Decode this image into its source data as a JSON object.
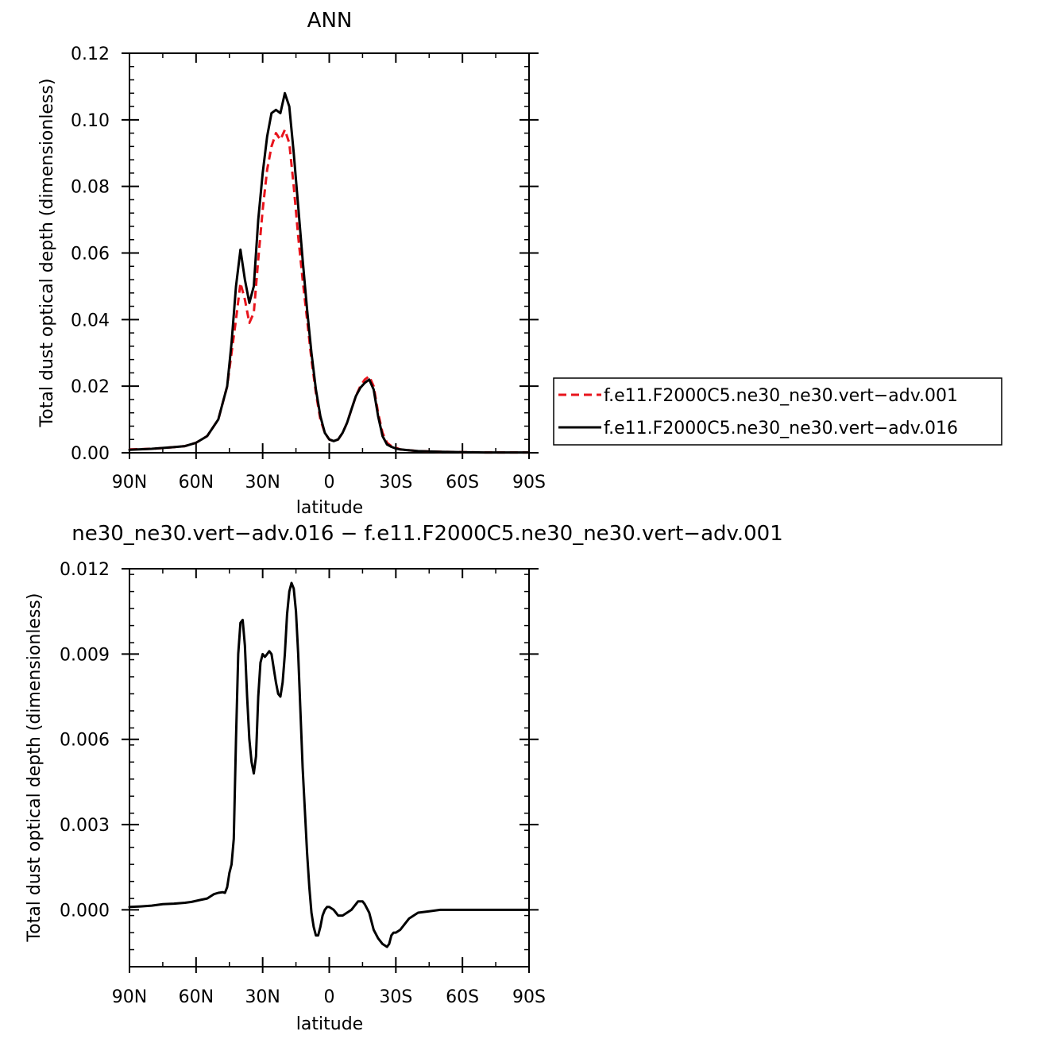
{
  "chart_data": [
    {
      "type": "line",
      "title": "ANN",
      "xlabel": "latitude",
      "ylabel": "Total dust optical depth (dimensionless)",
      "xlim": [
        90,
        -90
      ],
      "ylim": [
        0,
        0.12
      ],
      "x_ticks": [
        90,
        60,
        30,
        0,
        -30,
        -60,
        -90
      ],
      "x_tick_labels": [
        "90N",
        "60N",
        "30N",
        "0",
        "30S",
        "60S",
        "90S"
      ],
      "y_ticks": [
        0,
        0.02,
        0.04,
        0.06,
        0.08,
        0.1,
        0.12
      ],
      "y_tick_labels": [
        "0.00",
        "0.02",
        "0.04",
        "0.06",
        "0.08",
        "0.10",
        "0.12"
      ],
      "legend_position": "right",
      "series": [
        {
          "name": "f.e11.F2000C5.ne30_ne30.vert−adv.001",
          "color": "#e8141c",
          "dash": "dashed",
          "x": [
            90,
            80,
            70,
            65,
            60,
            55,
            50,
            46,
            44,
            42,
            40,
            38,
            36,
            34,
            32,
            30,
            28,
            26,
            24,
            22,
            20,
            18,
            16,
            14,
            12,
            10,
            8,
            6,
            4,
            2,
            0,
            -2,
            -4,
            -6,
            -8,
            -10,
            -12,
            -14,
            -16,
            -18,
            -20,
            -22,
            -24,
            -26,
            -28,
            -30,
            -32,
            -35,
            -40,
            -50,
            -60,
            -70,
            -90
          ],
          "y": [
            0.001,
            0.0012,
            0.0017,
            0.002,
            0.003,
            0.005,
            0.01,
            0.02,
            0.03,
            0.04,
            0.051,
            0.046,
            0.039,
            0.042,
            0.058,
            0.073,
            0.085,
            0.092,
            0.096,
            0.094,
            0.097,
            0.093,
            0.08,
            0.065,
            0.052,
            0.04,
            0.028,
            0.018,
            0.01,
            0.006,
            0.004,
            0.0035,
            0.004,
            0.006,
            0.009,
            0.013,
            0.017,
            0.02,
            0.022,
            0.023,
            0.02,
            0.012,
            0.006,
            0.003,
            0.002,
            0.0015,
            0.001,
            0.0008,
            0.0005,
            0.0003,
            0.0002,
            0.0001,
            0.0001
          ]
        },
        {
          "name": "f.e11.F2000C5.ne30_ne30.vert−adv.016",
          "color": "#000000",
          "dash": "solid",
          "x": [
            90,
            80,
            70,
            65,
            60,
            55,
            50,
            46,
            44,
            42,
            40,
            38,
            36,
            34,
            32,
            30,
            28,
            26,
            24,
            22,
            20,
            18,
            16,
            14,
            12,
            10,
            8,
            6,
            4,
            2,
            0,
            -2,
            -4,
            -6,
            -8,
            -10,
            -12,
            -14,
            -16,
            -18,
            -20,
            -22,
            -24,
            -26,
            -28,
            -30,
            -32,
            -35,
            -40,
            -50,
            -60,
            -70,
            -90
          ],
          "y": [
            0.0009,
            0.0012,
            0.0017,
            0.002,
            0.003,
            0.005,
            0.01,
            0.02,
            0.033,
            0.05,
            0.061,
            0.052,
            0.045,
            0.05,
            0.07,
            0.084,
            0.095,
            0.102,
            0.103,
            0.102,
            0.108,
            0.104,
            0.09,
            0.074,
            0.058,
            0.043,
            0.03,
            0.019,
            0.011,
            0.006,
            0.004,
            0.0035,
            0.004,
            0.006,
            0.009,
            0.013,
            0.017,
            0.0195,
            0.021,
            0.022,
            0.019,
            0.011,
            0.005,
            0.0025,
            0.0018,
            0.0013,
            0.001,
            0.0008,
            0.0005,
            0.0003,
            0.0002,
            0.0001,
            0.0001
          ]
        }
      ]
    },
    {
      "type": "line",
      "title": "ne30_ne30.vert−adv.016 − f.e11.F2000C5.ne30_ne30.vert−adv.001",
      "xlabel": "latitude",
      "ylabel": "Total dust optical depth (dimensionless)",
      "xlim": [
        90,
        -90
      ],
      "ylim": [
        -0.002,
        0.012
      ],
      "x_ticks": [
        90,
        60,
        30,
        0,
        -30,
        -60,
        -90
      ],
      "x_tick_labels": [
        "90N",
        "60N",
        "30N",
        "0",
        "30S",
        "60S",
        "90S"
      ],
      "y_ticks": [
        0,
        0.003,
        0.006,
        0.009,
        0.012
      ],
      "y_tick_labels": [
        "0.000",
        "0.003",
        "0.006",
        "0.009",
        "0.012"
      ],
      "series": [
        {
          "color": "#000000",
          "dash": "solid",
          "x": [
            90,
            85,
            80,
            75,
            70,
            65,
            62,
            58,
            55,
            52,
            50,
            48,
            47,
            46,
            45,
            44,
            43,
            42,
            41,
            40,
            39,
            38,
            37,
            36,
            35,
            34,
            33,
            32,
            31,
            30,
            29,
            28,
            27,
            26,
            25,
            24,
            23,
            22,
            21,
            20,
            19,
            18,
            17,
            16,
            15,
            14,
            13,
            12,
            11,
            10,
            9,
            8,
            7,
            6,
            5,
            4,
            3,
            2,
            1,
            0,
            -2,
            -4,
            -6,
            -8,
            -10,
            -12,
            -13,
            -14,
            -15,
            -16,
            -18,
            -20,
            -22,
            -24,
            -26,
            -27,
            -28,
            -29,
            -30,
            -32,
            -34,
            -36,
            -38,
            -40,
            -45,
            -50,
            -55,
            -60,
            -70,
            -80,
            -90
          ],
          "y": [
            0.0001,
            0.00012,
            0.00015,
            0.0002,
            0.00022,
            0.00025,
            0.00028,
            0.00035,
            0.0004,
            0.00055,
            0.0006,
            0.00062,
            0.0006,
            0.0008,
            0.0013,
            0.0016,
            0.0025,
            0.006,
            0.009,
            0.0101,
            0.0102,
            0.0093,
            0.0075,
            0.006,
            0.0052,
            0.0048,
            0.0054,
            0.0075,
            0.0087,
            0.009,
            0.0089,
            0.009,
            0.0091,
            0.009,
            0.0085,
            0.008,
            0.0076,
            0.0075,
            0.008,
            0.009,
            0.0104,
            0.0112,
            0.0115,
            0.0113,
            0.0105,
            0.009,
            0.007,
            0.005,
            0.0035,
            0.002,
            0.0008,
            -0.0001,
            -0.0006,
            -0.0009,
            -0.0009,
            -0.0006,
            -0.0002,
            0.0,
            0.0001,
            0.0001,
            0.0,
            -0.0002,
            -0.0002,
            -0.0001,
            0.0,
            0.0002,
            0.0003,
            0.0003,
            0.0003,
            0.0002,
            -0.0001,
            -0.0007,
            -0.001,
            -0.0012,
            -0.0013,
            -0.0012,
            -0.0009,
            -0.0008,
            -0.0008,
            -0.0007,
            -0.0005,
            -0.0003,
            -0.0002,
            -0.0001,
            -5e-05,
            0.0,
            0.0,
            0.0,
            0.0,
            0.0,
            0.0
          ]
        }
      ]
    }
  ]
}
